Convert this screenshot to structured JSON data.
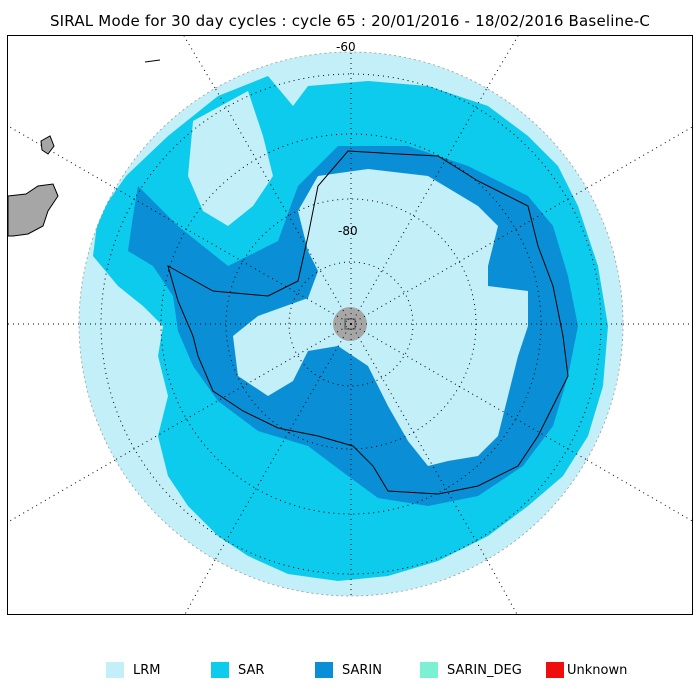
{
  "title": "SIRAL Mode for 30 day cycles : cycle 65 : 20/01/2016 - 18/02/2016 Baseline-C",
  "map": {
    "latitude_labels": [
      "-60",
      "-80"
    ]
  },
  "legend": [
    {
      "label": "LRM",
      "color": "#c3eff8"
    },
    {
      "label": "SAR",
      "color": "#0ccbec"
    },
    {
      "label": "SARIN",
      "color": "#0a8fd6"
    },
    {
      "label": "SARIN_DEG",
      "color": "#7cf0d3"
    },
    {
      "label": "Unknown",
      "color": "#ef0e0e"
    }
  ],
  "colors": {
    "land": "#a6a6a6",
    "ocean_background": "#ffffff",
    "coastline": "#000000",
    "graticule": "#000000"
  }
}
